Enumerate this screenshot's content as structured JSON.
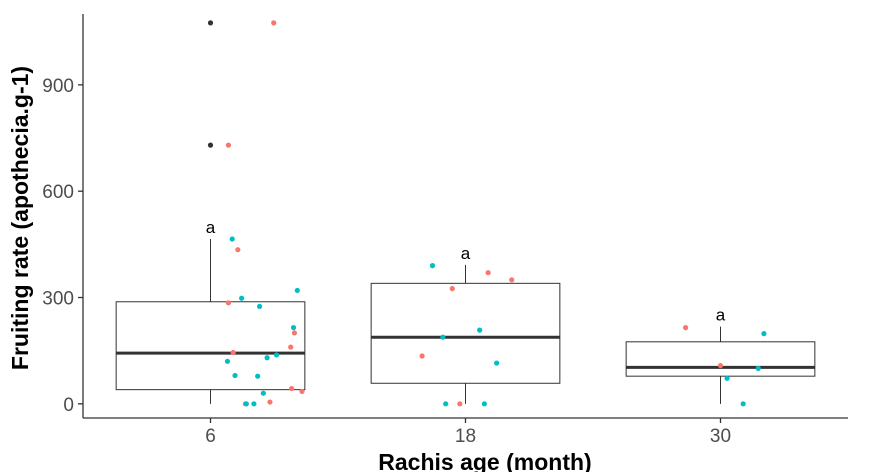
{
  "chart_data": {
    "type": "boxplot",
    "title": "",
    "xlabel": "Rachis age (month)",
    "ylabel": "Fruiting rate (apothecia.g-1)",
    "categories": [
      "6",
      "18",
      "30"
    ],
    "ylim": [
      -40,
      1100
    ],
    "y_ticks": [
      0,
      300,
      600,
      900
    ],
    "grid": false,
    "legend": "none",
    "colors": {
      "box": "#333333",
      "outlier": "#333333",
      "point_red": "#F8766D",
      "point_teal": "#00BFC4"
    },
    "boxes": [
      {
        "category": "6",
        "whisker_low": 0,
        "q1": 40,
        "median": 143,
        "q3": 288,
        "whisker_high": 465,
        "outliers": [
          730,
          1075
        ],
        "letter": "a"
      },
      {
        "category": "18",
        "whisker_low": 0,
        "q1": 58,
        "median": 188,
        "q3": 340,
        "whisker_high": 392,
        "outliers": [],
        "letter": "a"
      },
      {
        "category": "30",
        "whisker_low": 0,
        "q1": 78,
        "median": 103,
        "q3": 175,
        "whisker_high": 218,
        "outliers": [],
        "letter": "a"
      }
    ],
    "points": [
      {
        "category": "6",
        "offset": 0.19,
        "y": 730,
        "color": "red"
      },
      {
        "category": "6",
        "offset": 0.67,
        "y": 1075,
        "color": "red"
      },
      {
        "category": "6",
        "offset": 0.19,
        "y": 285,
        "color": "red"
      },
      {
        "category": "6",
        "offset": 0.29,
        "y": 435,
        "color": "red"
      },
      {
        "category": "6",
        "offset": 0.24,
        "y": 145,
        "color": "red"
      },
      {
        "category": "6",
        "offset": 0.37,
        "y": 0,
        "color": "red"
      },
      {
        "category": "6",
        "offset": 0.63,
        "y": 5,
        "color": "red"
      },
      {
        "category": "6",
        "offset": 0.85,
        "y": 160,
        "color": "red"
      },
      {
        "category": "6",
        "offset": 0.89,
        "y": 200,
        "color": "red"
      },
      {
        "category": "6",
        "offset": 0.86,
        "y": 43,
        "color": "red"
      },
      {
        "category": "6",
        "offset": 0.97,
        "y": 35,
        "color": "red"
      },
      {
        "category": "6",
        "offset": 0.23,
        "y": 465,
        "color": "teal"
      },
      {
        "category": "6",
        "offset": 0.18,
        "y": 120,
        "color": "teal"
      },
      {
        "category": "6",
        "offset": 0.33,
        "y": 298,
        "color": "teal"
      },
      {
        "category": "6",
        "offset": 0.26,
        "y": 80,
        "color": "teal"
      },
      {
        "category": "6",
        "offset": 0.5,
        "y": 78,
        "color": "teal"
      },
      {
        "category": "6",
        "offset": 0.52,
        "y": 275,
        "color": "teal"
      },
      {
        "category": "6",
        "offset": 0.38,
        "y": 0,
        "color": "teal"
      },
      {
        "category": "6",
        "offset": 0.46,
        "y": 0,
        "color": "teal"
      },
      {
        "category": "6",
        "offset": 0.56,
        "y": 30,
        "color": "teal"
      },
      {
        "category": "6",
        "offset": 0.6,
        "y": 130,
        "color": "teal"
      },
      {
        "category": "6",
        "offset": 0.7,
        "y": 138,
        "color": "teal"
      },
      {
        "category": "6",
        "offset": 0.88,
        "y": 215,
        "color": "teal"
      },
      {
        "category": "6",
        "offset": 0.92,
        "y": 320,
        "color": "teal"
      },
      {
        "category": "18",
        "offset": -0.46,
        "y": 135,
        "color": "red"
      },
      {
        "category": "18",
        "offset": -0.14,
        "y": 325,
        "color": "red"
      },
      {
        "category": "18",
        "offset": -0.06,
        "y": 0,
        "color": "red"
      },
      {
        "category": "18",
        "offset": 0.24,
        "y": 370,
        "color": "red"
      },
      {
        "category": "18",
        "offset": 0.49,
        "y": 350,
        "color": "red"
      },
      {
        "category": "18",
        "offset": -0.35,
        "y": 390,
        "color": "teal"
      },
      {
        "category": "18",
        "offset": -0.24,
        "y": 188,
        "color": "teal"
      },
      {
        "category": "18",
        "offset": -0.21,
        "y": 0,
        "color": "teal"
      },
      {
        "category": "18",
        "offset": 0.15,
        "y": 208,
        "color": "teal"
      },
      {
        "category": "18",
        "offset": 0.2,
        "y": 0,
        "color": "teal"
      },
      {
        "category": "18",
        "offset": 0.33,
        "y": 115,
        "color": "teal"
      },
      {
        "category": "30",
        "offset": -0.37,
        "y": 215,
        "color": "red"
      },
      {
        "category": "30",
        "offset": 0.0,
        "y": 108,
        "color": "red"
      },
      {
        "category": "30",
        "offset": 0.07,
        "y": 72,
        "color": "teal"
      },
      {
        "category": "30",
        "offset": 0.24,
        "y": 0,
        "color": "teal"
      },
      {
        "category": "30",
        "offset": 0.4,
        "y": 100,
        "color": "teal"
      },
      {
        "category": "30",
        "offset": 0.46,
        "y": 198,
        "color": "teal"
      }
    ]
  }
}
